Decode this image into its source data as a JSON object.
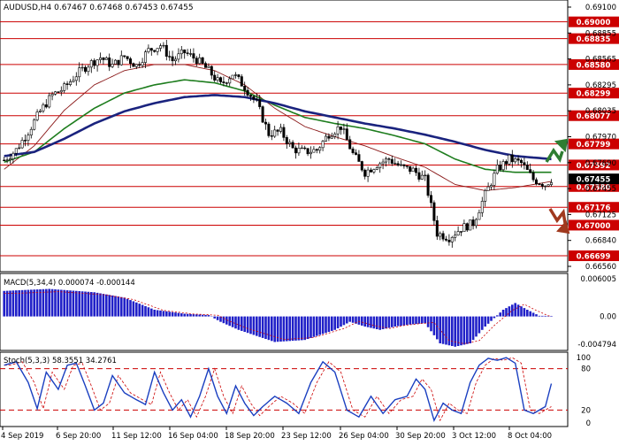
{
  "header": {
    "symbol_line": "AUDUSD,H4  0.67467 0.67468 0.67453 0.67455"
  },
  "colors": {
    "up_candle": "#ffffff",
    "down_candle": "#000000",
    "candle_border": "#000000",
    "level_line": "#cc0000",
    "level_tag_bg": "#cc0000",
    "price_tag_bg": "#000000",
    "ma_fast": "#8b1a1a",
    "ma_mid": "#1e7d1e",
    "ma_slow": "#1a237e",
    "macd_hist": "#2020c8",
    "macd_signal": "#cc0000",
    "stoch_main": "#1a3fc0",
    "stoch_signal": "#cc0000",
    "arrow_up": "#2e7d32",
    "arrow_down": "#a0391e"
  },
  "icons": {
    "up_arrow": "zigzag-up-arrow-icon",
    "down_arrow": "zigzag-down-arrow-icon"
  },
  "price_axis": {
    "labels": [
      "0.69100",
      "0.68855",
      "0.68565",
      "0.68295",
      "0.68035",
      "0.67970",
      "0.67690",
      "0.67455",
      "0.67125",
      "0.66840",
      "0.66560"
    ]
  },
  "levels": {
    "labels": [
      "0.69000",
      "0.68835",
      "0.68580",
      "0.68299",
      "0.68077",
      "0.67799",
      "0.67592",
      "0.67380",
      "0.67176",
      "0.67000",
      "0.66699"
    ],
    "current_price": "0.67455"
  },
  "macd": {
    "label": "MACD(5,34,4) 0.000074 -0.000144",
    "axis_labels": [
      "0.006005",
      "0.00",
      "-0.004794"
    ]
  },
  "stoch": {
    "label": "Stoch(5,3,3) 58.3551 34.2761",
    "axis_labels": [
      "100",
      "80",
      "20",
      "0"
    ]
  },
  "time_axis": {
    "labels": [
      "4 Sep 2019",
      "6 Sep 20:00",
      "11 Sep 12:00",
      "16 Sep 04:00",
      "18 Sep 20:00",
      "23 Sep 12:00",
      "26 Sep 04:00",
      "30 Sep 20:00",
      "3 Oct 12:00",
      "8 Oct 04:00"
    ]
  },
  "chart_data": {
    "type": "candlestick",
    "title": "AUDUSD,H4",
    "ylim": [
      0.6656,
      0.6918
    ],
    "horizontal_levels": [
      0.69,
      0.68835,
      0.6858,
      0.68299,
      0.68077,
      0.67799,
      0.67592,
      0.6738,
      0.67176,
      0.67,
      0.66699
    ],
    "close_anchors": [
      [
        0,
        0.6764
      ],
      [
        4,
        0.6774
      ],
      [
        8,
        0.6792
      ],
      [
        12,
        0.6812
      ],
      [
        16,
        0.6828
      ],
      [
        20,
        0.6835
      ],
      [
        24,
        0.6848
      ],
      [
        28,
        0.6858
      ],
      [
        32,
        0.6865
      ],
      [
        36,
        0.6857
      ],
      [
        40,
        0.6866
      ],
      [
        44,
        0.6857
      ],
      [
        48,
        0.6872
      ],
      [
        52,
        0.6877
      ],
      [
        56,
        0.6862
      ],
      [
        60,
        0.687
      ],
      [
        64,
        0.6863
      ],
      [
        68,
        0.6852
      ],
      [
        72,
        0.6838
      ],
      [
        76,
        0.6849
      ],
      [
        80,
        0.6836
      ],
      [
        84,
        0.682
      ],
      [
        88,
        0.679
      ],
      [
        92,
        0.6792
      ],
      [
        96,
        0.6775
      ],
      [
        100,
        0.6772
      ],
      [
        104,
        0.6774
      ],
      [
        108,
        0.679
      ],
      [
        112,
        0.6797
      ],
      [
        116,
        0.677
      ],
      [
        120,
        0.6752
      ],
      [
        124,
        0.676
      ],
      [
        128,
        0.6765
      ],
      [
        132,
        0.6757
      ],
      [
        136,
        0.6754
      ],
      [
        140,
        0.6745
      ],
      [
        144,
        0.6692
      ],
      [
        148,
        0.6688
      ],
      [
        152,
        0.6697
      ],
      [
        156,
        0.6702
      ],
      [
        160,
        0.673
      ],
      [
        164,
        0.6755
      ],
      [
        168,
        0.6765
      ],
      [
        172,
        0.6761
      ],
      [
        176,
        0.6745
      ],
      [
        180,
        0.674
      ],
      [
        182,
        0.67455
      ]
    ],
    "series": [
      {
        "name": "",
        "values": [
          [
            0,
            0.6755
          ],
          [
            10,
            0.6778
          ],
          [
            20,
            0.6813
          ],
          [
            30,
            0.6838
          ],
          [
            40,
            0.6852
          ],
          [
            50,
            0.6858
          ],
          [
            60,
            0.6858
          ],
          [
            70,
            0.6852
          ],
          [
            80,
            0.6838
          ],
          [
            90,
            0.6815
          ],
          [
            100,
            0.6797
          ],
          [
            110,
            0.6787
          ],
          [
            120,
            0.6778
          ],
          [
            130,
            0.6767
          ],
          [
            140,
            0.6757
          ],
          [
            150,
            0.674
          ],
          [
            160,
            0.6734
          ],
          [
            170,
            0.6737
          ],
          [
            180,
            0.6742
          ],
          [
            182,
            0.6743
          ]
        ]
      },
      {
        "name": "",
        "values": [
          [
            0,
            0.6762
          ],
          [
            10,
            0.6772
          ],
          [
            20,
            0.6795
          ],
          [
            30,
            0.6815
          ],
          [
            40,
            0.683
          ],
          [
            50,
            0.6838
          ],
          [
            60,
            0.6843
          ],
          [
            70,
            0.684
          ],
          [
            80,
            0.6832
          ],
          [
            90,
            0.6818
          ],
          [
            100,
            0.6806
          ],
          [
            110,
            0.68
          ],
          [
            120,
            0.6795
          ],
          [
            130,
            0.6788
          ],
          [
            140,
            0.678
          ],
          [
            150,
            0.6765
          ],
          [
            160,
            0.6755
          ],
          [
            170,
            0.6752
          ],
          [
            182,
            0.6752
          ]
        ]
      },
      {
        "name": "",
        "values": [
          [
            0,
            0.6768
          ],
          [
            10,
            0.6772
          ],
          [
            20,
            0.6785
          ],
          [
            30,
            0.68
          ],
          [
            40,
            0.6812
          ],
          [
            50,
            0.682
          ],
          [
            60,
            0.6826
          ],
          [
            70,
            0.6828
          ],
          [
            80,
            0.6826
          ],
          [
            90,
            0.682
          ],
          [
            100,
            0.6812
          ],
          [
            110,
            0.6806
          ],
          [
            120,
            0.68
          ],
          [
            130,
            0.6795
          ],
          [
            140,
            0.6789
          ],
          [
            150,
            0.6782
          ],
          [
            160,
            0.6774
          ],
          [
            170,
            0.6768
          ],
          [
            182,
            0.6765
          ]
        ]
      }
    ],
    "macd_hist_anchors": [
      [
        0,
        0.0038
      ],
      [
        15,
        0.0041
      ],
      [
        30,
        0.0036
      ],
      [
        40,
        0.0028
      ],
      [
        50,
        0.001
      ],
      [
        60,
        0.0004
      ],
      [
        68,
        0.0002
      ],
      [
        72,
        -0.0008
      ],
      [
        78,
        -0.002
      ],
      [
        90,
        -0.0038
      ],
      [
        100,
        -0.0035
      ],
      [
        110,
        -0.002
      ],
      [
        115,
        -0.0008
      ],
      [
        120,
        -0.0015
      ],
      [
        125,
        -0.002
      ],
      [
        130,
        -0.0015
      ],
      [
        135,
        -0.0012
      ],
      [
        140,
        -0.001
      ],
      [
        145,
        -0.004
      ],
      [
        150,
        -0.0045
      ],
      [
        155,
        -0.004
      ],
      [
        160,
        -0.0015
      ],
      [
        166,
        0.001
      ],
      [
        170,
        0.002
      ],
      [
        174,
        0.001
      ],
      [
        178,
        0.0001
      ],
      [
        182,
        7.4e-05
      ]
    ],
    "macd_ylim": [
      -0.004794,
      0.006005
    ],
    "stoch_main_anchors": [
      [
        0,
        85
      ],
      [
        4,
        90
      ],
      [
        8,
        60
      ],
      [
        11,
        22
      ],
      [
        14,
        75
      ],
      [
        18,
        50
      ],
      [
        21,
        85
      ],
      [
        24,
        88
      ],
      [
        27,
        55
      ],
      [
        30,
        20
      ],
      [
        33,
        30
      ],
      [
        36,
        70
      ],
      [
        40,
        45
      ],
      [
        44,
        35
      ],
      [
        47,
        28
      ],
      [
        50,
        75
      ],
      [
        53,
        45
      ],
      [
        56,
        20
      ],
      [
        59,
        35
      ],
      [
        62,
        10
      ],
      [
        65,
        40
      ],
      [
        68,
        80
      ],
      [
        71,
        40
      ],
      [
        74,
        15
      ],
      [
        77,
        55
      ],
      [
        80,
        30
      ],
      [
        83,
        12
      ],
      [
        86,
        25
      ],
      [
        90,
        40
      ],
      [
        94,
        30
      ],
      [
        98,
        15
      ],
      [
        102,
        60
      ],
      [
        106,
        90
      ],
      [
        110,
        75
      ],
      [
        114,
        20
      ],
      [
        118,
        10
      ],
      [
        122,
        40
      ],
      [
        126,
        15
      ],
      [
        130,
        35
      ],
      [
        134,
        40
      ],
      [
        137,
        65
      ],
      [
        140,
        50
      ],
      [
        143,
        5
      ],
      [
        146,
        30
      ],
      [
        149,
        20
      ],
      [
        152,
        15
      ],
      [
        155,
        60
      ],
      [
        158,
        85
      ],
      [
        161,
        95
      ],
      [
        164,
        92
      ],
      [
        167,
        96
      ],
      [
        170,
        88
      ],
      [
        173,
        20
      ],
      [
        176,
        15
      ],
      [
        180,
        25
      ],
      [
        182,
        58.3551
      ]
    ],
    "stoch_ylim": [
      0,
      100
    ],
    "stoch_levels": [
      80,
      20
    ]
  }
}
